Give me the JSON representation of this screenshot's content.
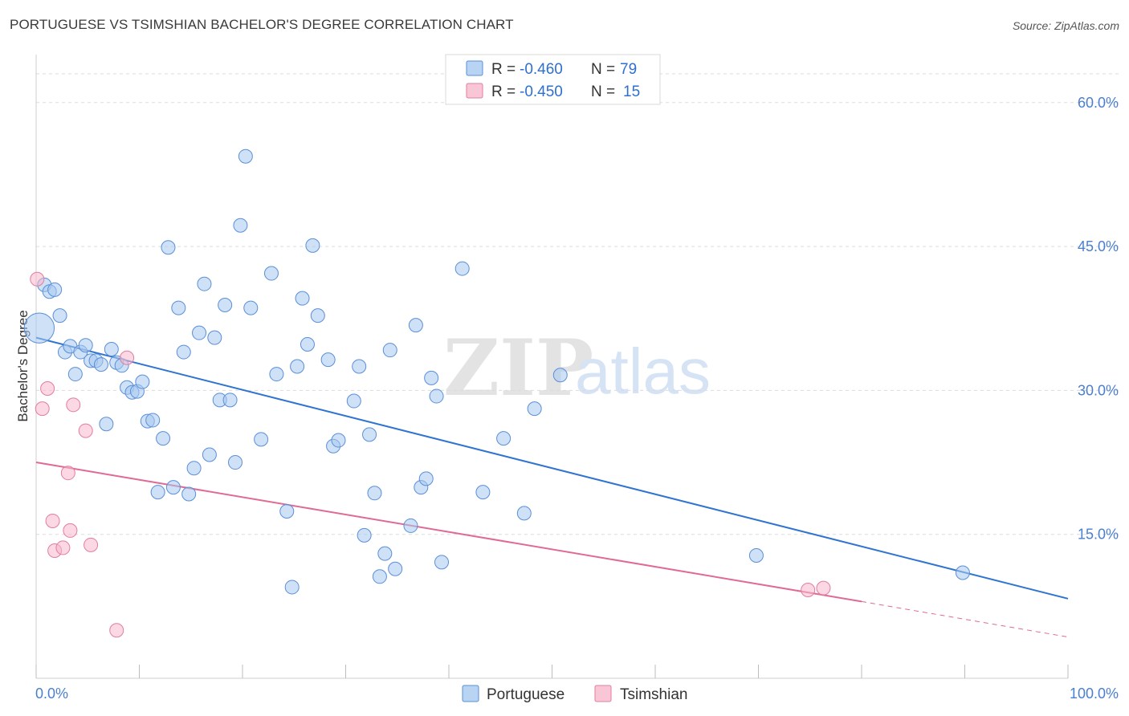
{
  "header": {
    "title": "PORTUGUESE VS TSIMSHIAN BACHELOR'S DEGREE CORRELATION CHART",
    "source": "Source: ZipAtlas.com"
  },
  "legend_top": {
    "rows": [
      {
        "r_label": "R = ",
        "r_value": "-0.460",
        "n_label": "N = ",
        "n_value": "79",
        "color": "#a8c8f0"
      },
      {
        "r_label": "R = ",
        "r_value": "-0.450",
        "n_label": "N = ",
        "n_value": "15",
        "color": "#f8b8cc"
      }
    ]
  },
  "legend_bottom": {
    "items": [
      {
        "label": "Portuguese",
        "color": "#a8c8f0"
      },
      {
        "label": "Tsimshian",
        "color": "#f8b8cc"
      }
    ]
  },
  "watermark": {
    "zip": "ZIP",
    "atlas": "atlas"
  },
  "chart_data": {
    "type": "scatter",
    "title": "PORTUGUESE VS TSIMSHIAN BACHELOR'S DEGREE CORRELATION CHART",
    "xlabel": "",
    "ylabel": "Bachelor's Degree",
    "xlim": [
      0,
      100
    ],
    "ylim": [
      0,
      65
    ],
    "x_tick_labels": [
      "0.0%",
      "100.0%"
    ],
    "y_ticks": [
      15,
      30,
      45,
      60
    ],
    "y_tick_labels": [
      "15.0%",
      "30.0%",
      "45.0%",
      "60.0%"
    ],
    "series": [
      {
        "name": "Portuguese",
        "color": "#a8c8f0",
        "stroke": "#5a8fd8",
        "trend": {
          "x": [
            0,
            100
          ],
          "y": [
            35.5,
            8.3
          ],
          "color": "#2f74d0"
        },
        "points": [
          [
            0.3,
            36.5,
            2.2
          ],
          [
            0.8,
            41,
            1
          ],
          [
            1.3,
            40.3,
            1
          ],
          [
            1.8,
            40.5,
            1
          ],
          [
            2.3,
            37.8,
            1
          ],
          [
            2.8,
            34,
            1
          ],
          [
            3.3,
            34.6,
            1
          ],
          [
            3.8,
            31.7,
            1
          ],
          [
            4.3,
            34,
            1
          ],
          [
            4.8,
            34.7,
            1
          ],
          [
            5.3,
            33.1,
            1
          ],
          [
            5.8,
            33.1,
            1
          ],
          [
            6.3,
            32.7,
            1
          ],
          [
            6.8,
            26.5,
            1
          ],
          [
            7.3,
            34.3,
            1
          ],
          [
            7.8,
            32.9,
            1
          ],
          [
            8.3,
            32.6,
            1
          ],
          [
            8.8,
            30.3,
            1
          ],
          [
            9.3,
            29.8,
            1
          ],
          [
            9.8,
            29.9,
            1
          ],
          [
            10.3,
            30.9,
            1
          ],
          [
            10.8,
            26.8,
            1
          ],
          [
            11.3,
            26.9,
            1
          ],
          [
            11.8,
            19.4,
            1
          ],
          [
            12.3,
            25,
            1
          ],
          [
            12.8,
            44.9,
            1
          ],
          [
            13.3,
            19.9,
            1
          ],
          [
            13.8,
            38.6,
            1
          ],
          [
            14.3,
            34,
            1
          ],
          [
            14.8,
            19.2,
            1
          ],
          [
            15.3,
            21.9,
            1
          ],
          [
            15.8,
            36,
            1
          ],
          [
            16.3,
            41.1,
            1
          ],
          [
            16.8,
            23.3,
            1
          ],
          [
            17.3,
            35.5,
            1
          ],
          [
            17.8,
            29,
            1
          ],
          [
            18.3,
            38.9,
            1
          ],
          [
            18.8,
            29,
            1
          ],
          [
            19.3,
            22.5,
            1
          ],
          [
            19.8,
            47.2,
            1
          ],
          [
            20.3,
            54.4,
            1
          ],
          [
            20.8,
            38.6,
            1
          ],
          [
            21.8,
            24.9,
            1
          ],
          [
            22.8,
            42.2,
            1
          ],
          [
            23.3,
            31.7,
            1
          ],
          [
            24.3,
            17.4,
            1
          ],
          [
            24.8,
            9.5,
            1
          ],
          [
            25.3,
            32.5,
            1
          ],
          [
            25.8,
            39.6,
            1
          ],
          [
            26.3,
            34.8,
            1
          ],
          [
            26.8,
            45.1,
            1
          ],
          [
            27.3,
            37.8,
            1
          ],
          [
            28.3,
            33.2,
            1
          ],
          [
            28.8,
            24.2,
            1
          ],
          [
            29.3,
            24.8,
            1
          ],
          [
            30.8,
            28.9,
            1
          ],
          [
            31.3,
            32.5,
            1
          ],
          [
            31.8,
            14.9,
            1
          ],
          [
            32.3,
            25.4,
            1
          ],
          [
            32.8,
            19.3,
            1
          ],
          [
            33.3,
            10.6,
            1
          ],
          [
            33.8,
            13,
            1
          ],
          [
            34.3,
            34.2,
            1
          ],
          [
            34.8,
            11.4,
            1
          ],
          [
            36.3,
            15.9,
            1
          ],
          [
            36.8,
            36.8,
            1
          ],
          [
            37.3,
            19.9,
            1
          ],
          [
            37.8,
            20.8,
            1
          ],
          [
            38.3,
            31.3,
            1
          ],
          [
            38.8,
            29.4,
            1
          ],
          [
            39.3,
            12.1,
            1
          ],
          [
            41.3,
            42.7,
            1
          ],
          [
            43.3,
            19.4,
            1
          ],
          [
            45.3,
            25,
            1
          ],
          [
            47.3,
            17.2,
            1
          ],
          [
            48.3,
            28.1,
            1
          ],
          [
            50.8,
            31.6,
            1
          ],
          [
            69.8,
            12.8,
            1
          ],
          [
            89.8,
            11,
            1
          ]
        ]
      },
      {
        "name": "Tsimshian",
        "color": "#f8b8cc",
        "stroke": "#e27da0",
        "trend": {
          "x": [
            0,
            80
          ],
          "y": [
            22.5,
            8
          ],
          "dashed_x": [
            80,
            100
          ],
          "dashed_y": [
            8,
            4.3
          ],
          "color": "#e06a96"
        },
        "points": [
          [
            0.1,
            41.6,
            1
          ],
          [
            0.6,
            28.1,
            1
          ],
          [
            1.1,
            30.2,
            1
          ],
          [
            1.6,
            16.4,
            1
          ],
          [
            1.8,
            13.3,
            1
          ],
          [
            2.6,
            13.6,
            1
          ],
          [
            3.1,
            21.4,
            1
          ],
          [
            3.3,
            15.4,
            1
          ],
          [
            3.6,
            28.5,
            1
          ],
          [
            4.8,
            25.8,
            1
          ],
          [
            5.3,
            13.9,
            1
          ],
          [
            7.8,
            5,
            1
          ],
          [
            8.8,
            33.4,
            1
          ],
          [
            74.8,
            9.2,
            1
          ],
          [
            76.3,
            9.4,
            1
          ]
        ]
      }
    ]
  }
}
